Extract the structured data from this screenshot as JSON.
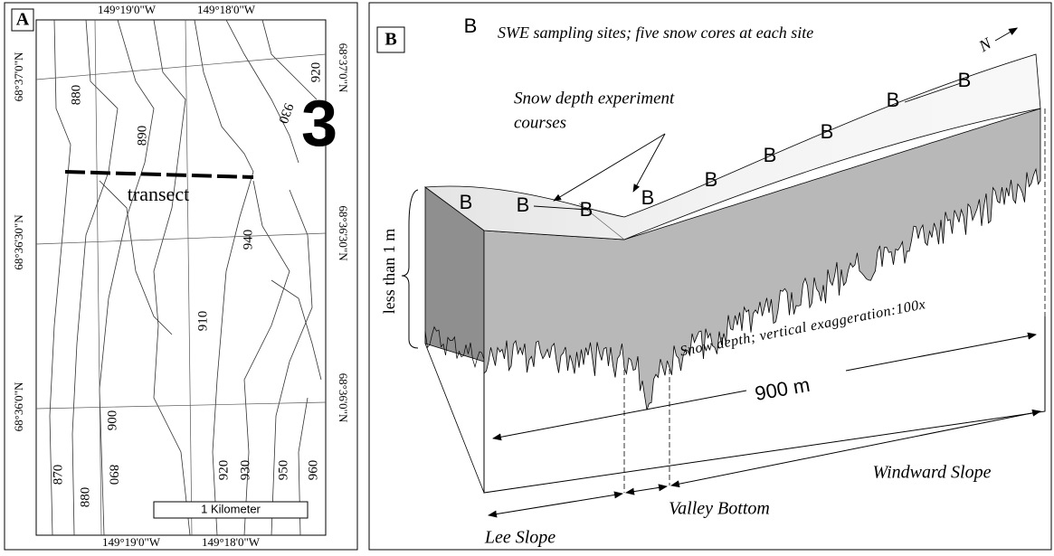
{
  "panel_a": {
    "label": "A",
    "number": "3",
    "transect_label": "transect",
    "scale_bar": "1 Kilometer",
    "longitude_labels_top": [
      "149°19'0\"W",
      "149°18'0\"W"
    ],
    "longitude_labels_bottom": [
      "149°19'0\"W",
      "149°18'0\"W"
    ],
    "latitude_labels_left": [
      "68°37'0\"N",
      "68°36'30\"N",
      "68°36'0\"N"
    ],
    "latitude_labels_right": [
      "68°37'0\"N",
      "68°36'30\"N",
      "68°36'0\"N"
    ],
    "contour_labels": [
      "880",
      "890",
      "930",
      "920",
      "940",
      "910",
      "900",
      "870",
      "880",
      "890",
      "920",
      "930",
      "950",
      "960"
    ]
  },
  "panel_b": {
    "label": "B",
    "legend_symbol": "B",
    "legend_text": "SWE sampling sites; five snow cores at each site",
    "course_label": [
      "Snow depth experiment",
      "courses"
    ],
    "sites": [
      "B",
      "B",
      "B",
      "B",
      "B",
      "B",
      "B",
      "B",
      "B"
    ],
    "north": "N",
    "depth_label": "less than 1 m",
    "exaggeration_label": "Snow depth; vertical exaggeration:100x",
    "length_label": "900 m",
    "slopes": [
      "Lee Slope",
      "Valley Bottom",
      "Windward Slope"
    ]
  }
}
